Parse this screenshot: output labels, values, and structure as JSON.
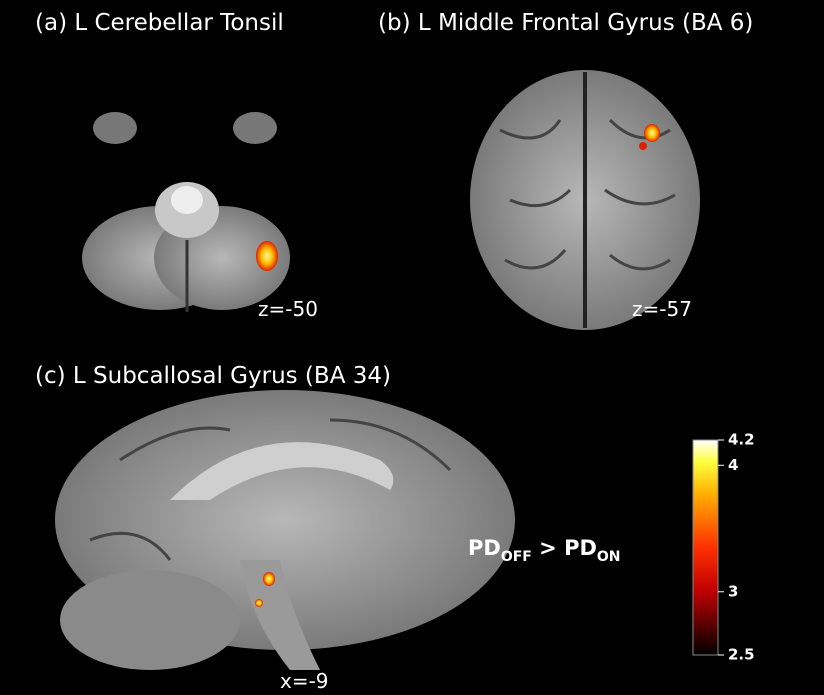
{
  "panels": [
    {
      "title": "(a) L Cerebellar Tonsil",
      "coordinate": "z=-50"
    },
    {
      "title": "(b) L Middle Frontal Gyrus  (BA 6)",
      "coordinate": "z=-57"
    },
    {
      "title": "(c) L Subcallosal Gyrus (BA 34)",
      "coordinate": "x=-9"
    }
  ],
  "contrast": {
    "left": "PD",
    "left_sub": "OFF",
    "operator": " > ",
    "right": "PD",
    "right_sub": "ON"
  },
  "colorbar": {
    "lim": [
      2.5,
      4.2
    ],
    "ticks": [
      2.5,
      3,
      4,
      4.2
    ]
  }
}
